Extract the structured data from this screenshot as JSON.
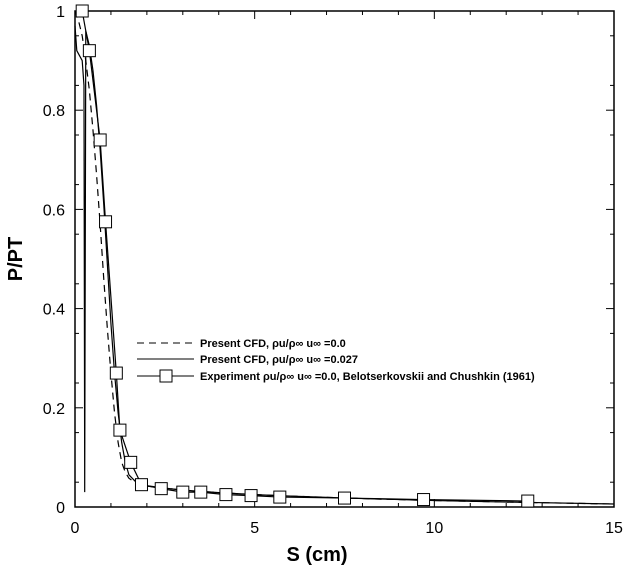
{
  "chart_data": {
    "type": "line",
    "xlabel": "S (cm)",
    "ylabel": "P/PT",
    "xlim": [
      0,
      15
    ],
    "ylim": [
      0,
      1
    ],
    "xticks": [
      0,
      5,
      10,
      15
    ],
    "yticks": [
      0,
      0.2,
      0.4,
      0.6,
      0.8,
      1
    ],
    "xtick_labels": [
      "0",
      "5",
      "10",
      "15"
    ],
    "ytick_labels": [
      "0",
      "0.2",
      "0.4",
      "0.6",
      "0.8",
      "1"
    ],
    "grid": false,
    "legend_position": "center-right",
    "series": [
      {
        "name": "Present CFD, ρu/ρ∞ u∞ =0.0",
        "style": "dashed",
        "marker": "none",
        "color": "#000000",
        "x": [
          0,
          0.1,
          0.2,
          0.3,
          0.4,
          0.5,
          0.6,
          0.7,
          0.8,
          0.9,
          1.0,
          1.1,
          1.2,
          1.3,
          1.4,
          1.5,
          1.7,
          2.0,
          2.5,
          3.0,
          4.0,
          5.0,
          6.0,
          8.0,
          10.0,
          12.0,
          15.0
        ],
        "y": [
          1.0,
          0.98,
          0.95,
          0.9,
          0.84,
          0.76,
          0.67,
          0.57,
          0.46,
          0.36,
          0.27,
          0.19,
          0.13,
          0.09,
          0.07,
          0.058,
          0.048,
          0.042,
          0.038,
          0.034,
          0.029,
          0.025,
          0.022,
          0.017,
          0.013,
          0.01,
          0.006
        ]
      },
      {
        "name": "Present CFD, ρu/ρ∞ u∞ =0.027",
        "style": "solid",
        "marker": "none",
        "color": "#000000",
        "x": [
          0,
          0.05,
          0.2,
          0.25,
          0.27,
          0.3,
          0.4,
          0.5,
          0.6,
          0.7,
          0.8,
          0.9,
          1.0,
          1.1,
          1.2,
          1.3,
          1.4,
          1.5,
          1.7,
          2.0,
          2.5,
          3.0,
          4.0,
          5.0,
          6.0,
          8.0,
          10.0,
          12.0,
          15.0
        ],
        "y": [
          0.97,
          0.92,
          0.9,
          0.85,
          0.03,
          0.96,
          0.93,
          0.88,
          0.81,
          0.72,
          0.61,
          0.49,
          0.37,
          0.27,
          0.19,
          0.13,
          0.09,
          0.065,
          0.05,
          0.043,
          0.038,
          0.034,
          0.029,
          0.025,
          0.022,
          0.017,
          0.013,
          0.01,
          0.006
        ]
      },
      {
        "name": "Experiment ρu/ρ∞ u∞ =0.0,  Belotserkovskii and Chushkin (1961)",
        "style": "solid",
        "marker": "square",
        "color": "#000000",
        "x": [
          0.2,
          0.4,
          0.7,
          0.85,
          1.15,
          1.25,
          1.55,
          1.85,
          2.4,
          3.0,
          3.5,
          4.2,
          4.9,
          5.7,
          7.5,
          9.7,
          12.6
        ],
        "y": [
          1.0,
          0.92,
          0.74,
          0.575,
          0.27,
          0.155,
          0.09,
          0.045,
          0.037,
          0.03,
          0.03,
          0.025,
          0.023,
          0.02,
          0.018,
          0.015,
          0.012
        ]
      }
    ]
  }
}
